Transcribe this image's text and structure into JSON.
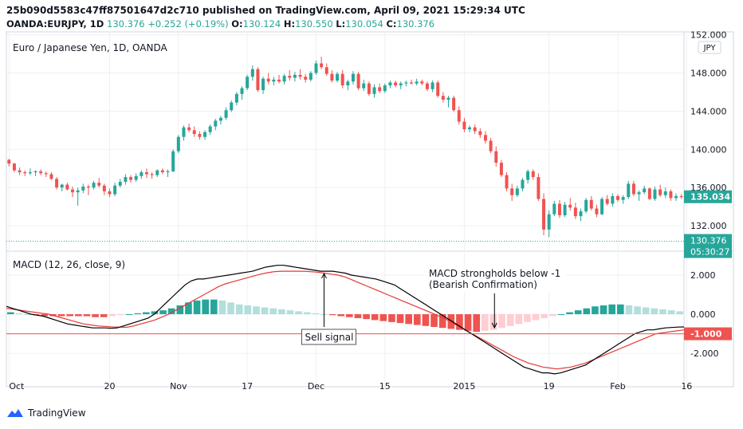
{
  "header": {
    "publish_line": "25b090d5583c47ff87501647d2c710 published on TradingView.com, April 09, 2021 15:29:34 UTC",
    "symbol": "OANDA:EURJPY, 1D",
    "last": "130.376",
    "change": "+0.252 (+0.19%)",
    "o_label": "O:",
    "o": "130.124",
    "h_label": "H:",
    "h": "130.550",
    "l_label": "L:",
    "l": "130.054",
    "c_label": "C:",
    "c": "130.376"
  },
  "brand": "TradingView",
  "colors": {
    "up": "#26a69a",
    "down": "#ef5350",
    "macd": "#000000",
    "signal": "#e53935",
    "hist_up_strong": "#26a69a",
    "hist_up_weak": "#b2dfdb",
    "hist_down_strong": "#ef5350",
    "hist_down_weak": "#ffcdd2",
    "grid": "#eef0f3",
    "border": "#9598a1"
  },
  "chart_data": [
    {
      "type": "candlestick",
      "title": "Euro / Japanese Yen, 1D, OANDA",
      "currency_badge": "JPY",
      "y_ticks": [
        "152.000",
        "148.000",
        "144.000",
        "140.000",
        "136.000",
        "132.000"
      ],
      "y_tick_values": [
        152,
        148,
        144,
        140,
        136,
        132
      ],
      "ylim": [
        129.5,
        152.3
      ],
      "price_label": "135.034",
      "price_label_value": 135.034,
      "last_price_label": "130.376",
      "last_price_value": 130.376,
      "countdown": "05:30:27",
      "x_tick_labels": [
        "Oct",
        "20",
        "Nov",
        "17",
        "Dec",
        "15",
        "2015",
        "19",
        "Feb",
        "16"
      ],
      "x_tick_index": [
        0,
        19,
        32,
        45,
        58,
        71,
        86,
        102,
        115,
        128
      ],
      "candles": [
        [
          138.9,
          139.0,
          138.2,
          138.5
        ],
        [
          138.5,
          138.6,
          137.6,
          137.8
        ],
        [
          137.8,
          138.1,
          137.3,
          137.6
        ],
        [
          137.6,
          137.8,
          137.2,
          137.5
        ],
        [
          137.5,
          138.0,
          137.3,
          137.6
        ],
        [
          137.6,
          137.8,
          137.2,
          137.7
        ],
        [
          137.7,
          137.9,
          137.3,
          137.5
        ],
        [
          137.5,
          137.7,
          137.1,
          137.4
        ],
        [
          137.4,
          137.6,
          136.8,
          136.9
        ],
        [
          136.9,
          137.1,
          135.8,
          136.0
        ],
        [
          136.0,
          136.4,
          135.6,
          136.3
        ],
        [
          136.3,
          136.5,
          135.7,
          135.8
        ],
        [
          135.8,
          136.1,
          135.0,
          135.5
        ],
        [
          135.5,
          136.0,
          134.1,
          135.7
        ],
        [
          135.7,
          136.4,
          135.4,
          136.1
        ],
        [
          136.1,
          136.3,
          135.2,
          136.0
        ],
        [
          136.0,
          136.7,
          135.8,
          136.5
        ],
        [
          136.5,
          137.0,
          136.0,
          136.2
        ],
        [
          136.2,
          136.4,
          135.2,
          135.6
        ],
        [
          135.6,
          135.9,
          135.0,
          135.3
        ],
        [
          135.3,
          136.5,
          135.1,
          136.2
        ],
        [
          136.2,
          136.9,
          136.0,
          136.6
        ],
        [
          136.6,
          137.4,
          136.3,
          137.1
        ],
        [
          137.1,
          137.3,
          136.5,
          136.8
        ],
        [
          136.8,
          137.5,
          136.6,
          137.2
        ],
        [
          137.2,
          137.8,
          136.9,
          137.6
        ],
        [
          137.6,
          138.0,
          137.0,
          137.4
        ],
        [
          137.4,
          137.6,
          136.9,
          137.3
        ],
        [
          137.3,
          137.9,
          137.1,
          137.8
        ],
        [
          137.8,
          138.0,
          137.4,
          137.6
        ],
        [
          137.6,
          137.9,
          137.1,
          137.7
        ],
        [
          137.7,
          140.0,
          137.6,
          139.8
        ],
        [
          139.8,
          141.5,
          139.6,
          141.3
        ],
        [
          141.3,
          142.5,
          140.9,
          142.3
        ],
        [
          142.3,
          142.7,
          141.8,
          142.0
        ],
        [
          142.0,
          142.4,
          141.3,
          141.6
        ],
        [
          141.6,
          141.9,
          141.0,
          141.3
        ],
        [
          141.3,
          142.0,
          141.0,
          141.8
        ],
        [
          141.8,
          142.6,
          141.5,
          142.4
        ],
        [
          142.4,
          143.2,
          142.0,
          143.0
        ],
        [
          143.0,
          143.5,
          142.6,
          143.3
        ],
        [
          143.3,
          144.4,
          143.1,
          144.1
        ],
        [
          144.1,
          145.1,
          143.9,
          144.9
        ],
        [
          144.9,
          146.0,
          144.6,
          145.8
        ],
        [
          145.8,
          146.6,
          145.2,
          146.4
        ],
        [
          146.4,
          147.8,
          146.2,
          147.6
        ],
        [
          147.6,
          148.8,
          147.2,
          148.4
        ],
        [
          148.4,
          148.6,
          146.0,
          146.2
        ],
        [
          146.2,
          147.6,
          145.8,
          147.4
        ],
        [
          147.4,
          148.0,
          146.8,
          147.1
        ],
        [
          147.1,
          147.6,
          146.7,
          147.3
        ],
        [
          147.3,
          147.8,
          146.9,
          147.1
        ],
        [
          147.1,
          147.9,
          146.8,
          147.7
        ],
        [
          147.7,
          148.3,
          147.2,
          147.5
        ],
        [
          147.5,
          148.1,
          147.1,
          147.8
        ],
        [
          147.8,
          148.4,
          147.3,
          147.6
        ],
        [
          147.6,
          147.9,
          147.0,
          147.3
        ],
        [
          147.3,
          148.2,
          147.1,
          148.0
        ],
        [
          148.0,
          149.3,
          147.8,
          149.0
        ],
        [
          149.0,
          149.7,
          148.4,
          148.6
        ],
        [
          148.6,
          149.0,
          147.7,
          147.9
        ],
        [
          147.9,
          148.3,
          147.0,
          147.2
        ],
        [
          147.2,
          148.1,
          147.0,
          147.9
        ],
        [
          147.9,
          148.3,
          146.4,
          146.7
        ],
        [
          146.7,
          147.3,
          146.2,
          147.1
        ],
        [
          147.1,
          148.2,
          146.8,
          147.9
        ],
        [
          147.9,
          148.1,
          146.2,
          146.4
        ],
        [
          146.4,
          147.3,
          146.1,
          146.9
        ],
        [
          146.9,
          147.1,
          145.6,
          145.8
        ],
        [
          145.8,
          146.8,
          145.4,
          146.5
        ],
        [
          146.5,
          146.9,
          145.9,
          146.1
        ],
        [
          146.1,
          146.9,
          145.9,
          146.7
        ],
        [
          146.7,
          147.2,
          146.4,
          147.0
        ],
        [
          147.0,
          147.2,
          146.5,
          146.7
        ],
        [
          146.7,
          147.1,
          146.3,
          146.9
        ],
        [
          146.9,
          147.2,
          146.6,
          147.0
        ],
        [
          147.0,
          147.3,
          146.8,
          146.9
        ],
        [
          146.9,
          147.4,
          146.7,
          147.1
        ],
        [
          147.1,
          147.3,
          146.7,
          146.9
        ],
        [
          146.9,
          147.1,
          146.1,
          146.3
        ],
        [
          146.3,
          147.2,
          146.0,
          147.0
        ],
        [
          147.0,
          147.2,
          145.4,
          145.6
        ],
        [
          145.6,
          146.0,
          144.9,
          145.2
        ],
        [
          145.2,
          145.6,
          144.4,
          145.4
        ],
        [
          145.4,
          145.6,
          143.9,
          144.1
        ],
        [
          144.1,
          144.5,
          142.6,
          142.9
        ],
        [
          142.9,
          143.3,
          141.8,
          142.1
        ],
        [
          142.1,
          142.5,
          141.8,
          142.3
        ],
        [
          142.3,
          142.6,
          141.6,
          141.9
        ],
        [
          141.9,
          142.2,
          141.2,
          141.5
        ],
        [
          141.5,
          141.9,
          140.6,
          140.9
        ],
        [
          140.9,
          141.2,
          139.6,
          139.8
        ],
        [
          139.8,
          140.3,
          138.2,
          138.6
        ],
        [
          138.6,
          138.9,
          137.1,
          137.3
        ],
        [
          137.3,
          137.6,
          135.6,
          135.9
        ],
        [
          135.9,
          136.4,
          134.6,
          135.2
        ],
        [
          135.2,
          136.2,
          135.0,
          135.9
        ],
        [
          135.9,
          137.0,
          135.6,
          136.8
        ],
        [
          136.8,
          137.9,
          136.4,
          137.7
        ],
        [
          137.7,
          137.9,
          136.8,
          137.1
        ],
        [
          137.1,
          137.5,
          134.6,
          134.8
        ],
        [
          134.8,
          135.4,
          131.0,
          131.6
        ],
        [
          131.6,
          133.6,
          130.8,
          133.2
        ],
        [
          133.2,
          134.6,
          133.0,
          134.3
        ],
        [
          134.3,
          134.7,
          132.8,
          133.1
        ],
        [
          133.1,
          134.5,
          132.9,
          134.2
        ],
        [
          134.2,
          134.9,
          133.6,
          133.9
        ],
        [
          133.9,
          134.4,
          132.7,
          133.0
        ],
        [
          133.0,
          133.8,
          132.5,
          133.5
        ],
        [
          133.5,
          134.9,
          133.3,
          134.7
        ],
        [
          134.7,
          135.1,
          133.6,
          133.8
        ],
        [
          133.8,
          134.2,
          132.9,
          133.2
        ],
        [
          133.2,
          135.0,
          133.1,
          134.8
        ],
        [
          134.8,
          135.2,
          134.1,
          134.3
        ],
        [
          134.3,
          135.4,
          134.0,
          135.1
        ],
        [
          135.1,
          135.3,
          134.5,
          134.7
        ],
        [
          134.7,
          135.2,
          134.3,
          135.0
        ],
        [
          135.0,
          136.7,
          134.8,
          136.4
        ],
        [
          136.4,
          136.7,
          135.1,
          135.3
        ],
        [
          135.3,
          135.7,
          134.6,
          135.5
        ],
        [
          135.5,
          136.2,
          135.3,
          135.9
        ],
        [
          135.9,
          136.0,
          134.7,
          134.8
        ],
        [
          134.8,
          136.1,
          134.6,
          135.8
        ],
        [
          135.8,
          136.3,
          135.0,
          135.2
        ],
        [
          135.2,
          136.0,
          134.9,
          135.6
        ],
        [
          135.6,
          135.8,
          134.6,
          134.9
        ],
        [
          134.9,
          135.4,
          134.6,
          135.1
        ],
        [
          135.1,
          135.3,
          134.8,
          135.0
        ]
      ]
    },
    {
      "type": "macd",
      "title": "MACD (12, 26, close, 9)",
      "y_ticks": [
        "2.000",
        "0.000",
        "-2.000"
      ],
      "y_tick_values": [
        2,
        0,
        -2
      ],
      "ylim": [
        -3.3,
        3.1
      ],
      "reference_line": -1.0,
      "reference_label": "-1.000",
      "macd": [
        0.4,
        0.3,
        0.2,
        0.1,
        0.0,
        -0.05,
        -0.1,
        -0.2,
        -0.3,
        -0.4,
        -0.5,
        -0.55,
        -0.6,
        -0.65,
        -0.7,
        -0.7,
        -0.7,
        -0.72,
        -0.7,
        -0.6,
        -0.5,
        -0.4,
        -0.3,
        -0.2,
        0.0,
        0.3,
        0.6,
        0.9,
        1.2,
        1.5,
        1.7,
        1.8,
        1.8,
        1.85,
        1.9,
        1.95,
        2.0,
        2.05,
        2.1,
        2.15,
        2.2,
        2.3,
        2.4,
        2.45,
        2.5,
        2.5,
        2.45,
        2.4,
        2.35,
        2.3,
        2.25,
        2.2,
        2.2,
        2.2,
        2.15,
        2.1,
        2.0,
        1.95,
        1.9,
        1.85,
        1.8,
        1.7,
        1.6,
        1.5,
        1.3,
        1.1,
        0.9,
        0.7,
        0.5,
        0.3,
        0.1,
        -0.1,
        -0.3,
        -0.5,
        -0.7,
        -0.9,
        -1.1,
        -1.3,
        -1.5,
        -1.7,
        -1.9,
        -2.1,
        -2.3,
        -2.5,
        -2.7,
        -2.8,
        -2.9,
        -3.0,
        -3.0,
        -3.05,
        -3.0,
        -2.9,
        -2.8,
        -2.7,
        -2.6,
        -2.4,
        -2.2,
        -2.0,
        -1.8,
        -1.6,
        -1.4,
        -1.2,
        -1.0,
        -0.9,
        -0.8,
        -0.8,
        -0.75,
        -0.7,
        -0.68,
        -0.66,
        -0.65
      ],
      "signal": [
        0.3,
        0.25,
        0.2,
        0.15,
        0.1,
        0.05,
        0.0,
        -0.1,
        -0.2,
        -0.3,
        -0.4,
        -0.5,
        -0.55,
        -0.6,
        -0.62,
        -0.65,
        -0.66,
        -0.67,
        -0.6,
        -0.5,
        -0.4,
        -0.3,
        -0.15,
        0.0,
        0.2,
        0.4,
        0.6,
        0.8,
        1.0,
        1.2,
        1.4,
        1.55,
        1.65,
        1.75,
        1.85,
        1.95,
        2.05,
        2.12,
        2.18,
        2.2,
        2.2,
        2.2,
        2.2,
        2.18,
        2.15,
        2.1,
        2.05,
        2.0,
        1.9,
        1.75,
        1.6,
        1.45,
        1.3,
        1.15,
        1.0,
        0.85,
        0.7,
        0.55,
        0.4,
        0.25,
        0.1,
        -0.05,
        -0.2,
        -0.4,
        -0.6,
        -0.8,
        -1.0,
        -1.2,
        -1.4,
        -1.6,
        -1.8,
        -2.0,
        -2.2,
        -2.35,
        -2.5,
        -2.6,
        -2.7,
        -2.75,
        -2.8,
        -2.75,
        -2.7,
        -2.6,
        -2.5,
        -2.35,
        -2.2,
        -2.05,
        -1.9,
        -1.75,
        -1.6,
        -1.45,
        -1.3,
        -1.15,
        -1.0,
        -0.95,
        -0.9,
        -0.85,
        -0.8
      ],
      "histogram": [
        0.1,
        0.05,
        0.0,
        -0.05,
        -0.1,
        -0.1,
        -0.1,
        -0.1,
        -0.1,
        -0.1,
        -0.15,
        -0.15,
        -0.1,
        -0.05,
        0.0,
        0.05,
        0.1,
        0.15,
        0.2,
        0.3,
        0.45,
        0.6,
        0.7,
        0.75,
        0.75,
        0.7,
        0.6,
        0.5,
        0.45,
        0.4,
        0.35,
        0.3,
        0.25,
        0.2,
        0.15,
        0.1,
        0.05,
        0.0,
        -0.05,
        -0.1,
        -0.15,
        -0.2,
        -0.25,
        -0.3,
        -0.35,
        -0.4,
        -0.45,
        -0.5,
        -0.55,
        -0.6,
        -0.65,
        -0.7,
        -0.75,
        -0.8,
        -0.85,
        -0.9,
        -0.85,
        -0.8,
        -0.7,
        -0.6,
        -0.5,
        -0.4,
        -0.3,
        -0.2,
        -0.1,
        0.0,
        0.1,
        0.2,
        0.3,
        0.4,
        0.45,
        0.5,
        0.5,
        0.45,
        0.4,
        0.35,
        0.3,
        0.25,
        0.2,
        0.15
      ],
      "annotations": [
        {
          "text": "Sell signal",
          "lines": [
            "Sell signal"
          ],
          "candle_index": 58,
          "value": 2.2
        },
        {
          "text": "MACD strongholds below -1 (Bearish Confirmation)",
          "lines": [
            "MACD strongholds below -1",
            "(Bearish Confirmation)"
          ],
          "candle_index": 92,
          "value": -1.0
        }
      ]
    }
  ]
}
